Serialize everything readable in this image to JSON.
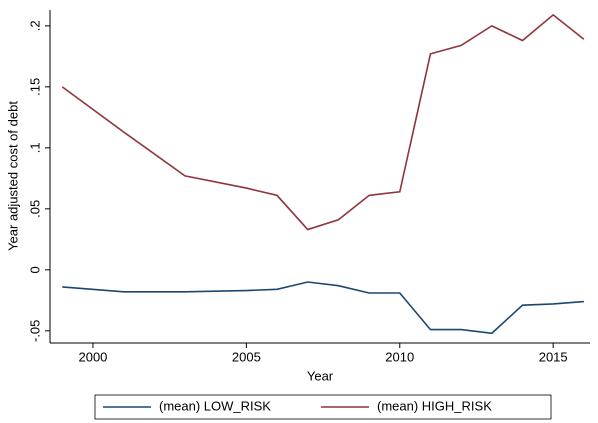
{
  "chart_data": {
    "type": "line",
    "x_label": "Year",
    "y_label": "Year adjusted cost of debt",
    "x": [
      1999,
      2001,
      2003,
      2005,
      2006,
      2007,
      2008,
      2009,
      2010,
      2011,
      2012,
      2013,
      2014,
      2015,
      2016
    ],
    "series": [
      {
        "name": "(mean) LOW_RISK",
        "color": "#1a476f",
        "values": [
          -0.014,
          -0.018,
          -0.018,
          -0.017,
          -0.016,
          -0.01,
          -0.013,
          -0.019,
          -0.019,
          -0.049,
          -0.049,
          -0.052,
          -0.029,
          -0.028,
          -0.026
        ]
      },
      {
        "name": "(mean) HIGH_RISK",
        "color": "#90353b",
        "values": [
          0.15,
          0.113,
          0.077,
          0.067,
          0.061,
          0.033,
          0.041,
          0.061,
          0.064,
          0.177,
          0.184,
          0.2,
          0.188,
          0.209,
          0.189
        ]
      }
    ],
    "xlim": [
      1998.6,
      2016.2
    ],
    "xticks": [
      2000,
      2005,
      2010,
      2015
    ],
    "ylim": [
      -0.06,
      0.213
    ],
    "yticks": [
      {
        "value": -0.05,
        "label": "-.05"
      },
      0,
      {
        "value": 0.05,
        "label": ".05"
      },
      {
        "value": 0.1,
        "label": ".1"
      },
      {
        "value": 0.15,
        "label": ".15"
      },
      {
        "value": 0.2,
        "label": ".2"
      }
    ],
    "legend": "bottom"
  }
}
